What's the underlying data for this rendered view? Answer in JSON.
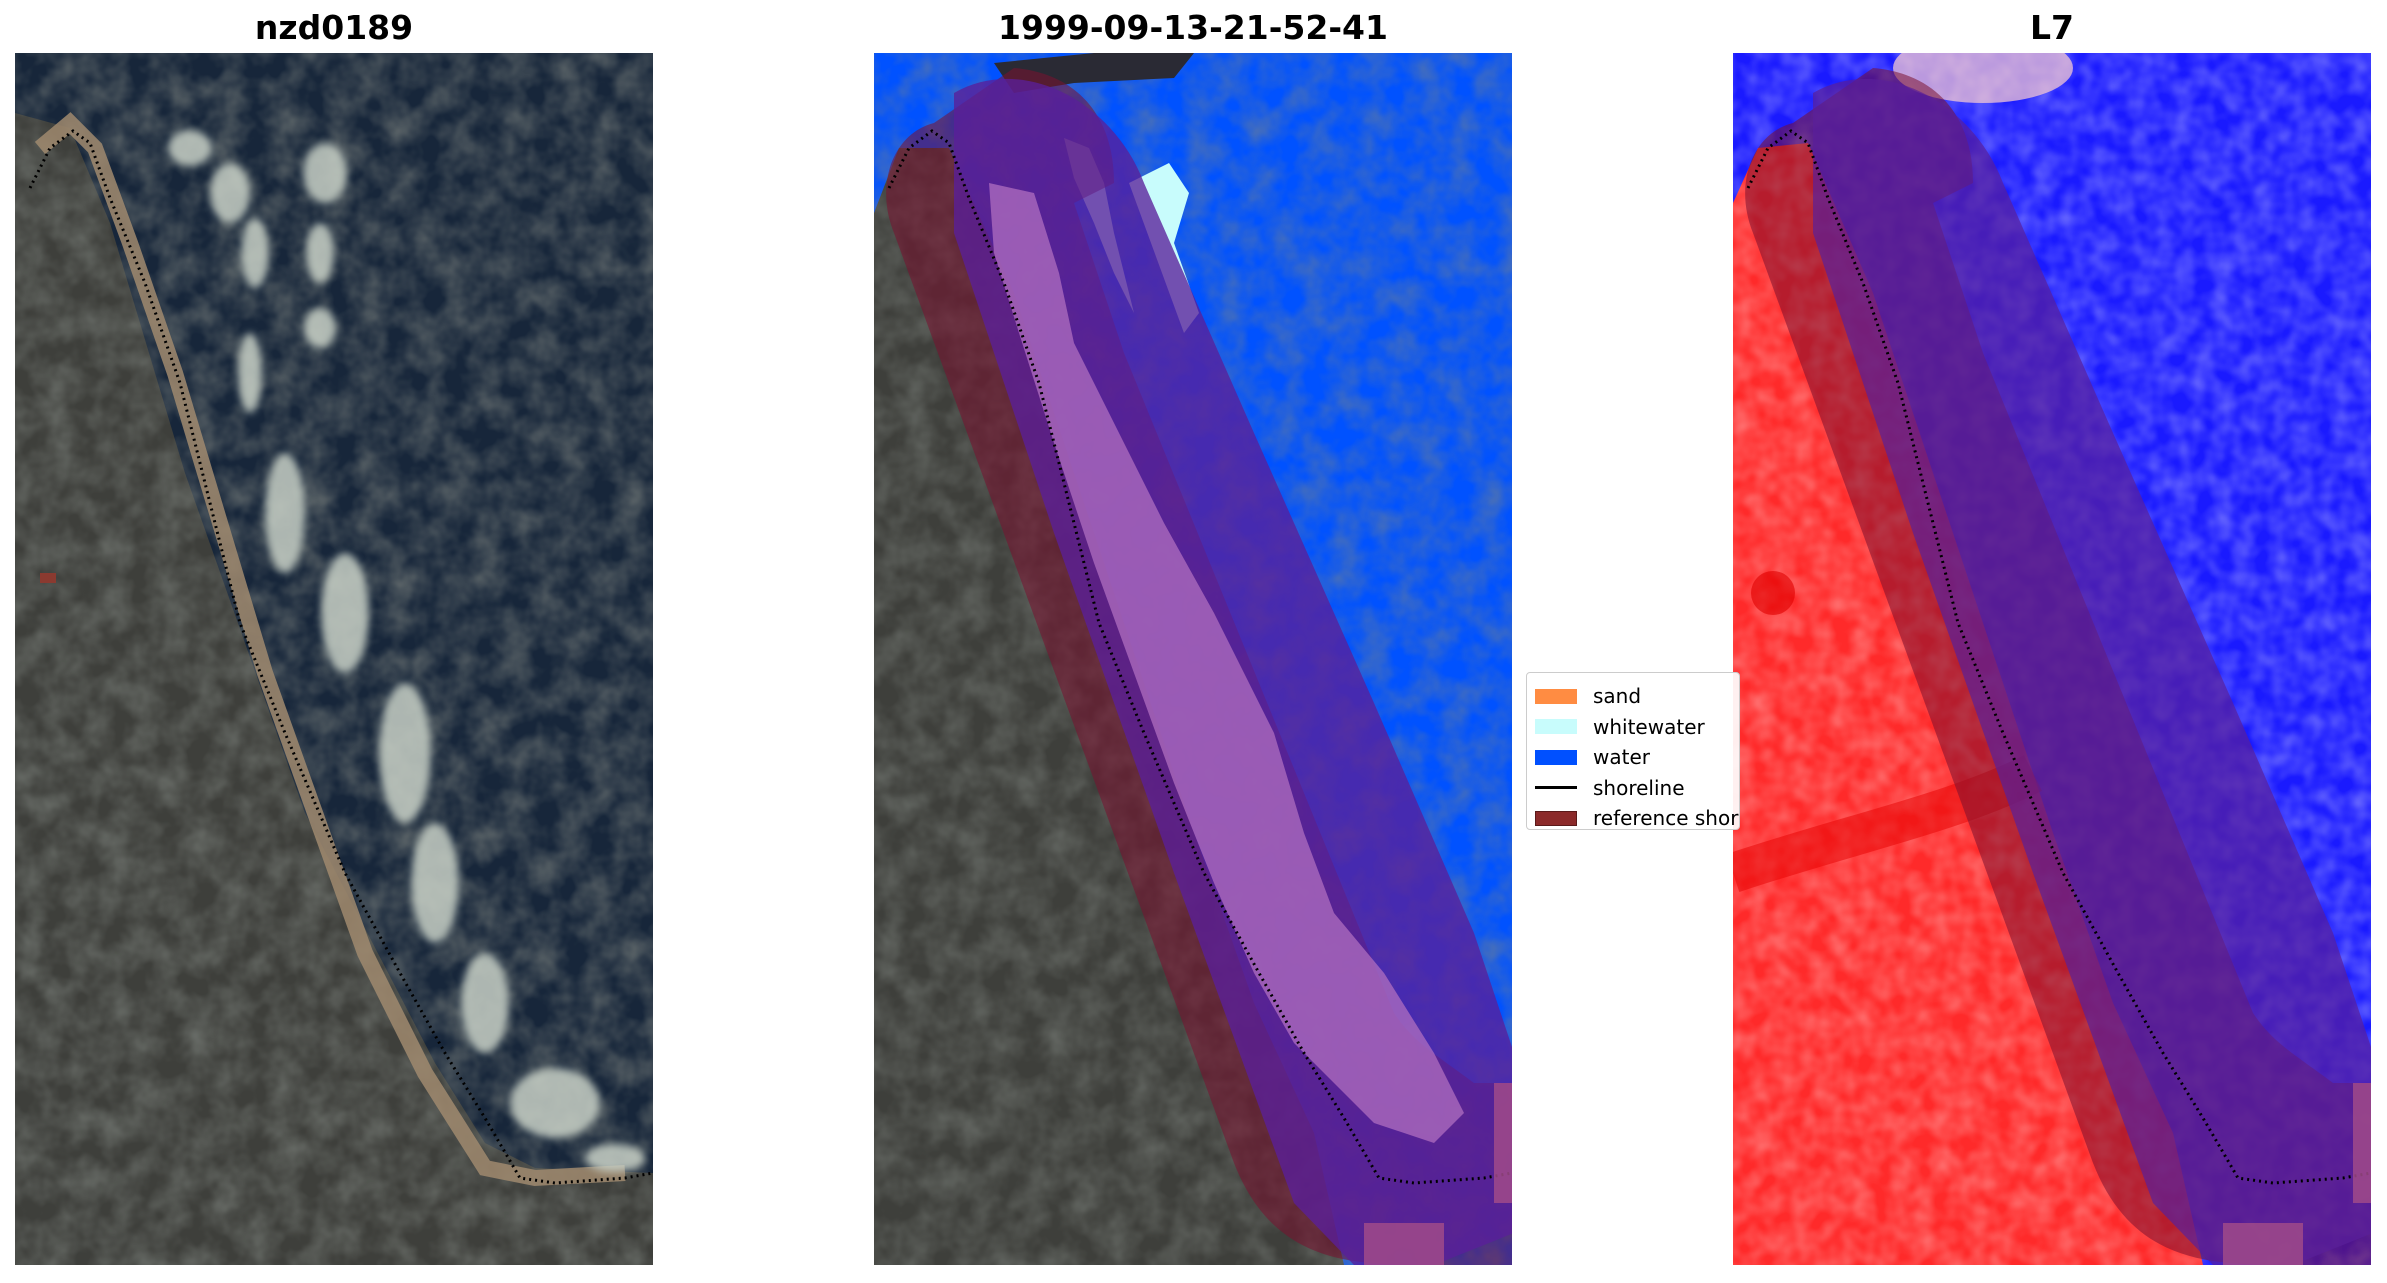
{
  "panels": [
    {
      "title": "nzd0189"
    },
    {
      "title": "1999-09-13-21-52-41"
    },
    {
      "title": "L7"
    }
  ],
  "legend": {
    "items": [
      {
        "label": "sand",
        "color": "#ff8c42"
      },
      {
        "label": "whitewater",
        "color": "#c8fcfc"
      },
      {
        "label": "water",
        "color": "#0050ff"
      },
      {
        "label": "shoreline",
        "color": "#000000"
      },
      {
        "label": "reference shoreline",
        "color": "#8b2a2a"
      }
    ]
  },
  "colors": {
    "sea_dark": "#17263a",
    "land_dark": "#3b3d3a",
    "water_class": "#0052ff",
    "buffer_overlay": "#7a1030",
    "ndwi_land": "#ff2020",
    "ndwi_water": "#1a1aff"
  }
}
